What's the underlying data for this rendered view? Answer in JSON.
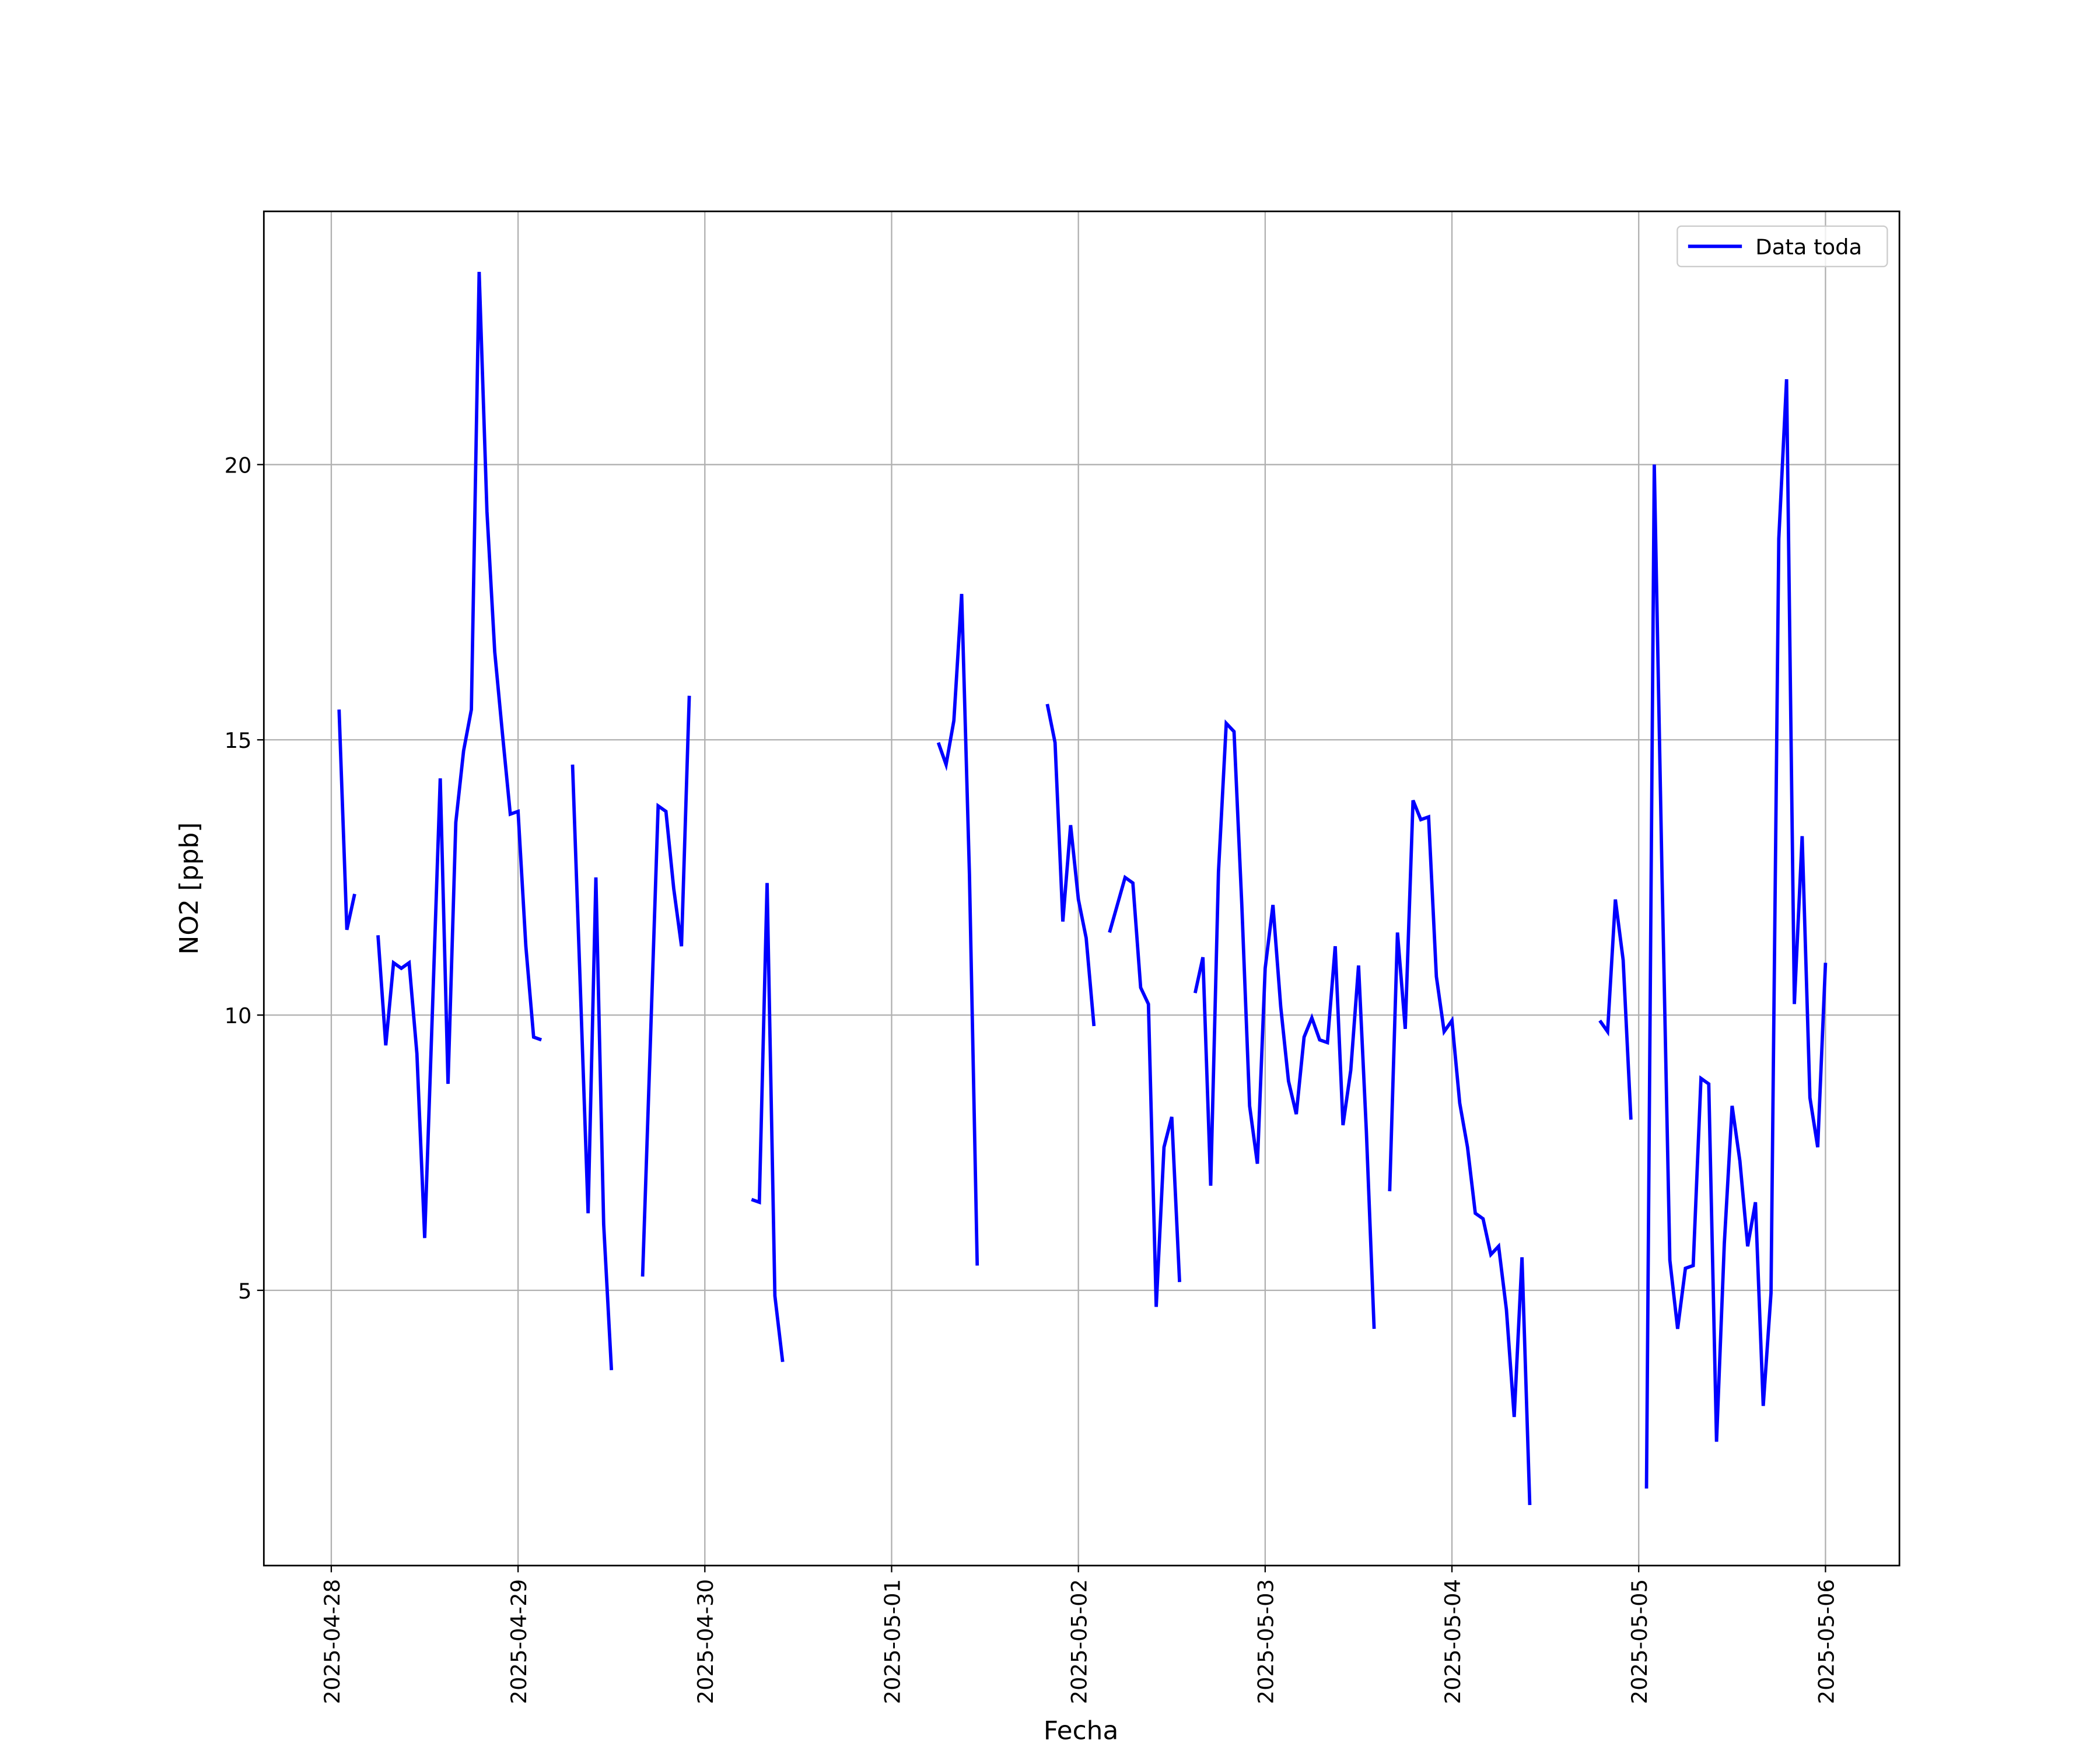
{
  "chart_data": {
    "type": "line",
    "xlabel": "Fecha",
    "ylabel": "NO2 [ppb]",
    "xlim": [
      "2025-04-27 15:20",
      "2025-05-06 09:30"
    ],
    "xticks": [
      "2025-04-28",
      "2025-04-29",
      "2025-04-30",
      "2025-05-01",
      "2025-05-02",
      "2025-05-03",
      "2025-05-04",
      "2025-05-05",
      "2025-05-06"
    ],
    "ylim": [
      0,
      24.6
    ],
    "yticks": [
      5,
      10,
      15,
      20
    ],
    "grid": true,
    "legend": "upper right",
    "x": [
      "2025-04-28 01:00",
      "2025-04-28 02:00",
      "2025-04-28 03:00",
      "2025-04-28 04:00",
      "2025-04-28 06:00",
      "2025-04-28 07:00",
      "2025-04-28 08:00",
      "2025-04-28 09:00",
      "2025-04-28 10:00",
      "2025-04-28 11:00",
      "2025-04-28 12:00",
      "2025-04-28 13:00",
      "2025-04-28 14:00",
      "2025-04-28 15:00",
      "2025-04-28 16:00",
      "2025-04-28 17:00",
      "2025-04-28 18:00",
      "2025-04-28 19:00",
      "2025-04-28 20:00",
      "2025-04-28 21:00",
      "2025-04-28 22:00",
      "2025-04-28 23:00",
      "2025-04-29 00:00",
      "2025-04-29 01:00",
      "2025-04-29 02:00",
      "2025-04-29 03:00",
      "2025-04-29 04:00",
      "2025-04-29 07:00",
      "2025-04-29 08:00",
      "2025-04-29 09:00",
      "2025-04-29 10:00",
      "2025-04-29 11:00",
      "2025-04-29 12:00",
      "2025-04-29 13:00",
      "2025-04-29 16:00",
      "2025-04-29 17:00",
      "2025-04-29 18:00",
      "2025-04-29 19:00",
      "2025-04-29 20:00",
      "2025-04-29 21:00",
      "2025-04-29 22:00",
      "2025-04-29 23:00",
      "2025-04-30 06:00",
      "2025-04-30 07:00",
      "2025-04-30 08:00",
      "2025-04-30 09:00",
      "2025-04-30 10:00",
      "2025-04-30 11:00",
      "2025-05-01 06:00",
      "2025-05-01 07:00",
      "2025-05-01 08:00",
      "2025-05-01 09:00",
      "2025-05-01 10:00",
      "2025-05-01 11:00",
      "2025-05-01 12:00",
      "2025-05-01 20:00",
      "2025-05-01 21:00",
      "2025-05-01 22:00",
      "2025-05-01 23:00",
      "2025-05-02 00:00",
      "2025-05-02 01:00",
      "2025-05-02 02:00",
      "2025-05-02 03:00",
      "2025-05-02 04:00",
      "2025-05-02 05:00",
      "2025-05-02 06:00",
      "2025-05-02 07:00",
      "2025-05-02 08:00",
      "2025-05-02 09:00",
      "2025-05-02 10:00",
      "2025-05-02 11:00",
      "2025-05-02 12:00",
      "2025-05-02 13:00",
      "2025-05-02 14:00",
      "2025-05-02 15:00",
      "2025-05-02 16:00",
      "2025-05-02 17:00",
      "2025-05-02 18:00",
      "2025-05-02 19:00",
      "2025-05-02 20:00",
      "2025-05-02 21:00",
      "2025-05-02 22:00",
      "2025-05-02 23:00",
      "2025-05-03 00:00",
      "2025-05-03 01:00",
      "2025-05-03 02:00",
      "2025-05-03 03:00",
      "2025-05-03 04:00",
      "2025-05-03 05:00",
      "2025-05-03 06:00",
      "2025-05-03 07:00",
      "2025-05-03 08:00",
      "2025-05-03 09:00",
      "2025-05-03 10:00",
      "2025-05-03 11:00",
      "2025-05-03 12:00",
      "2025-05-03 13:00",
      "2025-05-03 14:00",
      "2025-05-03 15:00",
      "2025-05-03 16:00",
      "2025-05-03 17:00",
      "2025-05-03 18:00",
      "2025-05-03 19:00",
      "2025-05-03 20:00",
      "2025-05-03 21:00",
      "2025-05-03 22:00",
      "2025-05-03 23:00",
      "2025-05-04 00:00",
      "2025-05-04 01:00",
      "2025-05-04 02:00",
      "2025-05-04 03:00",
      "2025-05-04 04:00",
      "2025-05-04 05:00",
      "2025-05-04 06:00",
      "2025-05-04 07:00",
      "2025-05-04 08:00",
      "2025-05-04 09:00",
      "2025-05-04 10:00",
      "2025-05-04 11:00",
      "2025-05-04 19:00",
      "2025-05-04 20:00",
      "2025-05-04 21:00",
      "2025-05-04 22:00",
      "2025-05-04 23:00",
      "2025-05-05 00:00",
      "2025-05-05 01:00",
      "2025-05-05 02:00",
      "2025-05-05 03:00",
      "2025-05-05 04:00",
      "2025-05-05 05:00",
      "2025-05-05 06:00",
      "2025-05-05 07:00",
      "2025-05-05 08:00",
      "2025-05-05 09:00",
      "2025-05-05 10:00",
      "2025-05-05 11:00",
      "2025-05-05 12:00",
      "2025-05-05 13:00",
      "2025-05-05 14:00",
      "2025-05-05 15:00",
      "2025-05-05 16:00",
      "2025-05-05 17:00",
      "2025-05-05 18:00",
      "2025-05-05 19:00",
      "2025-05-05 20:00",
      "2025-05-05 21:00",
      "2025-05-05 22:00",
      "2025-05-05 23:00",
      "2025-05-06 00:00"
    ],
    "series": [
      {
        "name": "Data toda",
        "color": "#0000ff",
        "values": [
          15.55,
          11.55,
          12.2,
          null,
          11.45,
          9.45,
          10.95,
          10.85,
          10.95,
          9.3,
          5.95,
          10.1,
          14.3,
          8.75,
          13.5,
          14.8,
          15.55,
          23.5,
          19.15,
          16.6,
          15.1,
          13.65,
          13.7,
          11.25,
          9.6,
          9.55,
          null,
          14.55,
          10.5,
          6.4,
          12.5,
          6.2,
          3.55,
          null,
          5.25,
          9.5,
          13.8,
          13.7,
          12.3,
          11.25,
          15.8,
          null,
          6.65,
          6.6,
          12.4,
          4.9,
          3.7,
          null,
          14.95,
          14.55,
          15.35,
          17.65,
          12.55,
          5.45,
          null,
          15.65,
          14.95,
          11.7,
          13.45,
          12.1,
          11.4,
          9.8,
          null,
          11.5,
          12.0,
          12.5,
          12.4,
          10.5,
          10.2,
          4.7,
          7.6,
          8.15,
          5.15,
          null,
          10.4,
          11.05,
          6.9,
          12.6,
          15.3,
          15.15,
          12.0,
          8.35,
          7.3,
          10.85,
          12.0,
          10.15,
          8.8,
          8.2,
          9.6,
          9.95,
          9.55,
          9.5,
          11.25,
          8.0,
          9.0,
          10.9,
          7.9,
          4.3,
          null,
          6.8,
          11.5,
          9.75,
          13.9,
          13.55,
          13.6,
          10.7,
          9.7,
          9.9,
          8.4,
          7.6,
          6.4,
          6.3,
          5.65,
          5.8,
          4.65,
          2.7,
          5.6,
          1.1,
          null,
          9.9,
          9.7,
          12.1,
          11.0,
          8.1,
          null,
          1.4,
          20.0,
          12.5,
          5.55,
          4.3,
          5.4,
          5.45,
          8.85,
          8.75,
          2.25,
          5.85,
          8.35,
          7.35,
          5.8,
          6.6,
          2.9,
          4.95,
          18.65,
          21.55,
          10.2,
          13.25,
          8.5,
          7.6,
          10.95
        ]
      }
    ]
  }
}
